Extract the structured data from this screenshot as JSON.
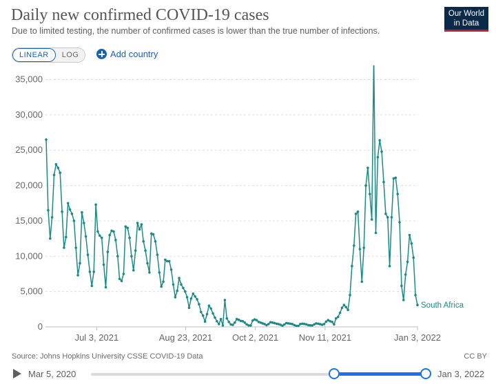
{
  "header": {
    "title": "Daily new confirmed COVID-19 cases",
    "subtitle": "Due to limited testing, the number of confirmed cases is lower than the true number of infections.",
    "logo_line1": "Our World",
    "logo_line2": "in Data"
  },
  "controls": {
    "scale_linear": "LINEAR",
    "scale_log": "LOG",
    "scale_selected": "LINEAR",
    "add_country": "Add country"
  },
  "chart_data": {
    "type": "line",
    "title": "Daily new confirmed COVID-19 cases",
    "subtitle": "Due to limited testing, the number of confirmed cases is lower than the true number of infections.",
    "xlabel": "",
    "ylabel": "",
    "x_start": "2021-06-04",
    "x_end": "2022-01-03",
    "xlim": [
      "2021-06-04",
      "2022-01-03"
    ],
    "ylim": [
      0,
      37000
    ],
    "y_ticks": [
      0,
      5000,
      10000,
      15000,
      20000,
      25000,
      30000,
      35000
    ],
    "y_tick_labels": [
      "0",
      "5,000",
      "10,000",
      "15,000",
      "20,000",
      "25,000",
      "30,000",
      "35,000"
    ],
    "x_ticks": [
      "2021-07-03",
      "2021-08-23",
      "2021-10-02",
      "2021-11-11",
      "2022-01-03"
    ],
    "x_tick_labels": [
      "Jul 3, 2021",
      "Aug 23, 2021",
      "Oct 2, 2021",
      "Nov 11, 2021",
      "Jan 3, 2022"
    ],
    "grid": "horizontal dashed",
    "series": [
      {
        "name": "South Africa",
        "color": "#1b8a85",
        "values": [
          26500,
          16500,
          12500,
          15500,
          21500,
          23000,
          22500,
          21800,
          16300,
          11200,
          12700,
          17500,
          16600,
          16000,
          15000,
          11200,
          7300,
          9000,
          16200,
          14700,
          12800,
          10200,
          7800,
          5800,
          7800,
          17300,
          13500,
          12900,
          12600,
          8800,
          5600,
          10600,
          13000,
          13600,
          13500,
          12300,
          10000,
          6800,
          6500,
          7500,
          14200,
          14000,
          12600,
          10000,
          8000,
          10800,
          14700,
          13800,
          14500,
          12100,
          10800,
          9000,
          7700,
          13200,
          13100,
          12100,
          10200,
          7700,
          5700,
          6400,
          9500,
          9300,
          9300,
          8100,
          6000,
          4200,
          5100,
          6900,
          6000,
          5500,
          5000,
          4200,
          2700,
          4000,
          4700,
          4300,
          3900,
          3200,
          2100,
          1600,
          750,
          1800,
          3000,
          2600,
          1900,
          1300,
          800,
          400,
          1100,
          200,
          3800,
          1200,
          700,
          350,
          280,
          600,
          1100,
          1000,
          850,
          800,
          600,
          350,
          200,
          200,
          900,
          1050,
          950,
          700,
          600,
          500,
          400,
          250,
          400,
          650,
          600,
          550,
          450,
          400,
          300,
          180,
          350,
          550,
          500,
          450,
          400,
          250,
          150,
          150,
          400,
          450,
          420,
          350,
          250,
          220,
          200,
          350,
          500,
          450,
          380,
          300,
          400,
          750,
          950,
          800,
          700,
          350,
          1200,
          1400,
          2000,
          2700,
          3100,
          2800,
          2400,
          4500,
          8600,
          11500,
          16000,
          16300,
          11000,
          6400,
          11200,
          20000,
          22500,
          18800,
          15200,
          37900,
          13300,
          24000,
          26400,
          24800,
          20500,
          16000,
          15500,
          8600,
          15500,
          21000,
          21100,
          18800,
          14800,
          5800,
          3800,
          7400,
          9200,
          13000,
          11800,
          9800,
          4500,
          3100
        ]
      }
    ]
  },
  "footer": {
    "source": "Source: Johns Hopkins University CSSE COVID-19 Data",
    "license": "CC BY"
  },
  "timeline": {
    "start_label": "Mar 5, 2020",
    "end_label": "Jan 3, 2022",
    "range_start_fraction": 0.7,
    "range_end_fraction": 1.0
  }
}
